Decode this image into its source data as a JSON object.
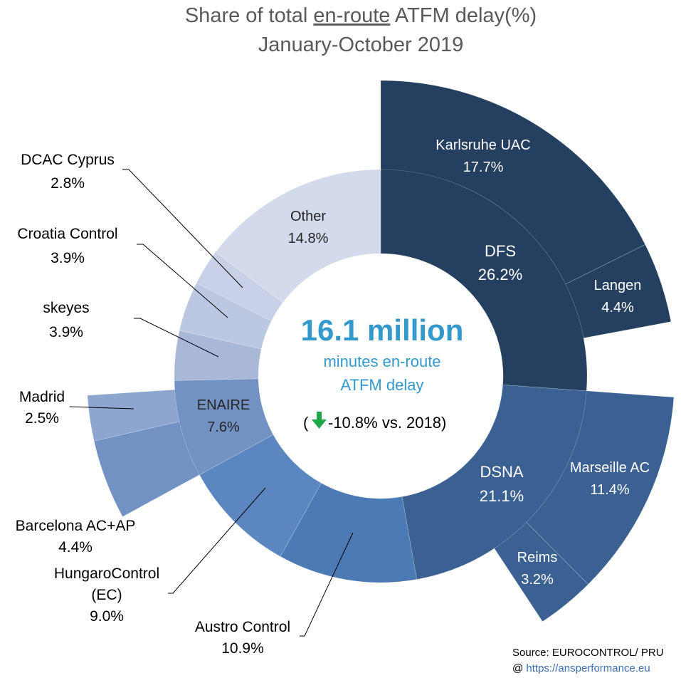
{
  "chart_data": {
    "type": "sunburst",
    "title_line1_pre": "Share of total ",
    "title_line1_underlined": "en-route",
    "title_line1_post": " ATFM delay(%)",
    "title_line2": "January-October 2019",
    "center": {
      "total": "16.1 million",
      "subtitle_line1": "minutes en-route",
      "subtitle_line2": "ATFM delay",
      "comparison_open": "(",
      "comparison_value": "-10.8% vs. 2018)",
      "comparison_direction": "down",
      "arrow_color": "#1fa64a"
    },
    "inner_ring": [
      {
        "name": "DFS",
        "value": 26.2,
        "label": "26.2%",
        "color": "#243f60"
      },
      {
        "name": "DSNA",
        "value": 21.1,
        "label": "21.1%",
        "color": "#3a6192"
      },
      {
        "name": "Austro Control",
        "value": 10.9,
        "label": "",
        "color": "#4c7ab4"
      },
      {
        "name": "HungaroControl (EC)",
        "value": 9.0,
        "label": "",
        "color": "#5b86c0"
      },
      {
        "name": "ENAIRE",
        "value": 7.6,
        "label": "7.6%",
        "color": "#7292c3"
      },
      {
        "name": "skeyes",
        "value": 3.9,
        "label": "",
        "color": "#aab8d8"
      },
      {
        "name": "Croatia Control",
        "value": 3.9,
        "label": "",
        "color": "#bcc7e1"
      },
      {
        "name": "DCAC Cyprus",
        "value": 2.8,
        "label": "",
        "color": "#c7d0e6"
      },
      {
        "name": "Other",
        "value": 14.8,
        "label": "14.8%",
        "color": "#d2daeb"
      }
    ],
    "outer_ring": [
      {
        "name": "Karlsruhe UAC",
        "parent": "DFS",
        "value": 17.7,
        "label": "17.7%",
        "color": "#243f60"
      },
      {
        "name": "Langen",
        "parent": "DFS",
        "value": 4.4,
        "label": "4.4%",
        "color": "#243f60"
      },
      {
        "name": "Marseille AC",
        "parent": "DSNA",
        "value": 11.4,
        "label": "11.4%",
        "color": "#3a6192"
      },
      {
        "name": "Reims",
        "parent": "DSNA",
        "value": 3.2,
        "label": "3.2%",
        "color": "#3a6192"
      },
      {
        "name": "Barcelona AC+AP",
        "parent": "ENAIRE",
        "value": 4.4,
        "label": "4.4%",
        "color": "#7292c3"
      },
      {
        "name": "Madrid",
        "parent": "ENAIRE",
        "value": 2.5,
        "label": "2.5%",
        "color": "#8ea6cf"
      }
    ],
    "outside_labels": [
      {
        "name": "DCAC Cyprus",
        "label": "2.8%"
      },
      {
        "name": "Croatia Control",
        "label": "3.9%"
      },
      {
        "name": "skeyes",
        "label": "3.9%"
      },
      {
        "name": "Madrid",
        "label": "2.5%"
      },
      {
        "name": "Barcelona AC+AP",
        "label": "4.4%"
      },
      {
        "name_line1": "HungaroControl",
        "name_line2": "(EC)",
        "label": "9.0%"
      },
      {
        "name": "Austro Control",
        "label": "10.9%"
      }
    ]
  },
  "source": {
    "text": "Source: EUROCONTROL/ PRU",
    "prefix": "@ ",
    "link": "https://ansperformance.eu"
  }
}
